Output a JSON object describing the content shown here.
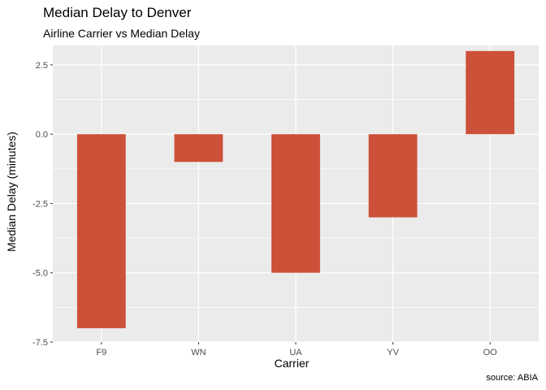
{
  "chart_data": {
    "type": "bar",
    "title": "Median Delay to Denver",
    "subtitle": "Airline Carrier vs Median Delay",
    "xlabel": "Carrier",
    "ylabel": "Median Delay (minutes)",
    "caption": "source: ABIA",
    "categories": [
      "F9",
      "WN",
      "UA",
      "YV",
      "OO"
    ],
    "values": [
      -7,
      -1,
      -5,
      -3,
      3
    ],
    "ylim": [
      -7.5,
      3.2
    ],
    "yticks": [
      -7.5,
      -5.0,
      -2.5,
      0.0,
      2.5
    ],
    "ytick_labels": [
      "-7.5",
      "-5.0",
      "-2.5",
      "0.0",
      "2.5"
    ],
    "bar_color": "#CD5038",
    "panel_color": "#EBEBEB",
    "grid": true,
    "legend": "none"
  }
}
